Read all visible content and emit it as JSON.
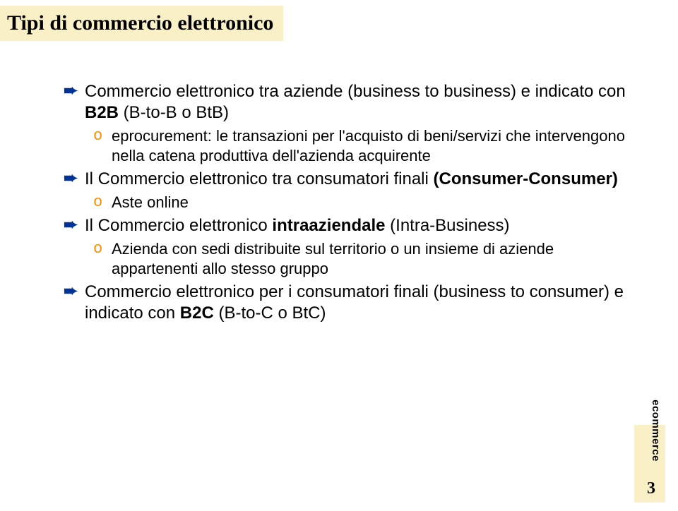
{
  "title": "Tipi di commercio elettronico",
  "bullets": [
    {
      "text_parts": [
        {
          "t": "Commercio elettronico tra aziende (business to business) e indicato con ",
          "b": false
        },
        {
          "t": "B2B",
          "b": true
        },
        {
          "t": " (B-to-B  o BtB)",
          "b": false
        }
      ],
      "subs": [
        {
          "parts": [
            {
              "t": "eprocurement",
              "b": false,
              "c": "#000000"
            },
            {
              "t": ": le transazioni per l'acquisto di beni/servizi che intervengono nella catena produttiva dell'azienda acquirente",
              "b": false,
              "c": "#000000"
            }
          ]
        }
      ]
    },
    {
      "text_parts": [
        {
          "t": "Il Commercio elettronico tra consumatori finali ",
          "b": false
        },
        {
          "t": "(Consumer-Consumer)",
          "b": true
        }
      ],
      "subs": [
        {
          "parts": [
            {
              "t": "Aste online",
              "b": false
            }
          ]
        }
      ]
    },
    {
      "text_parts": [
        {
          "t": "Il Commercio elettronico ",
          "b": false
        },
        {
          "t": "intraaziendale",
          "b": true
        },
        {
          "t": " (Intra-Business)",
          "b": false
        }
      ],
      "subs": [
        {
          "parts": [
            {
              "t": "Azienda con sedi distribuite sul territorio o un insieme di aziende appartenenti allo stesso gruppo",
              "b": false
            }
          ]
        }
      ]
    },
    {
      "text_parts": [
        {
          "t": "Commercio elettronico per i consumatori finali (business to consumer) e indicato con ",
          "b": false
        },
        {
          "t": "B2C",
          "b": true
        },
        {
          "t": "    (B-to-C o BtC)",
          "b": false
        }
      ],
      "subs": []
    }
  ],
  "side_label": "ecommerce",
  "page_number": "3",
  "colors": {
    "band_bg": "#faf0c8",
    "arrow": "#003399",
    "o_bullet": "#ff8c00"
  }
}
